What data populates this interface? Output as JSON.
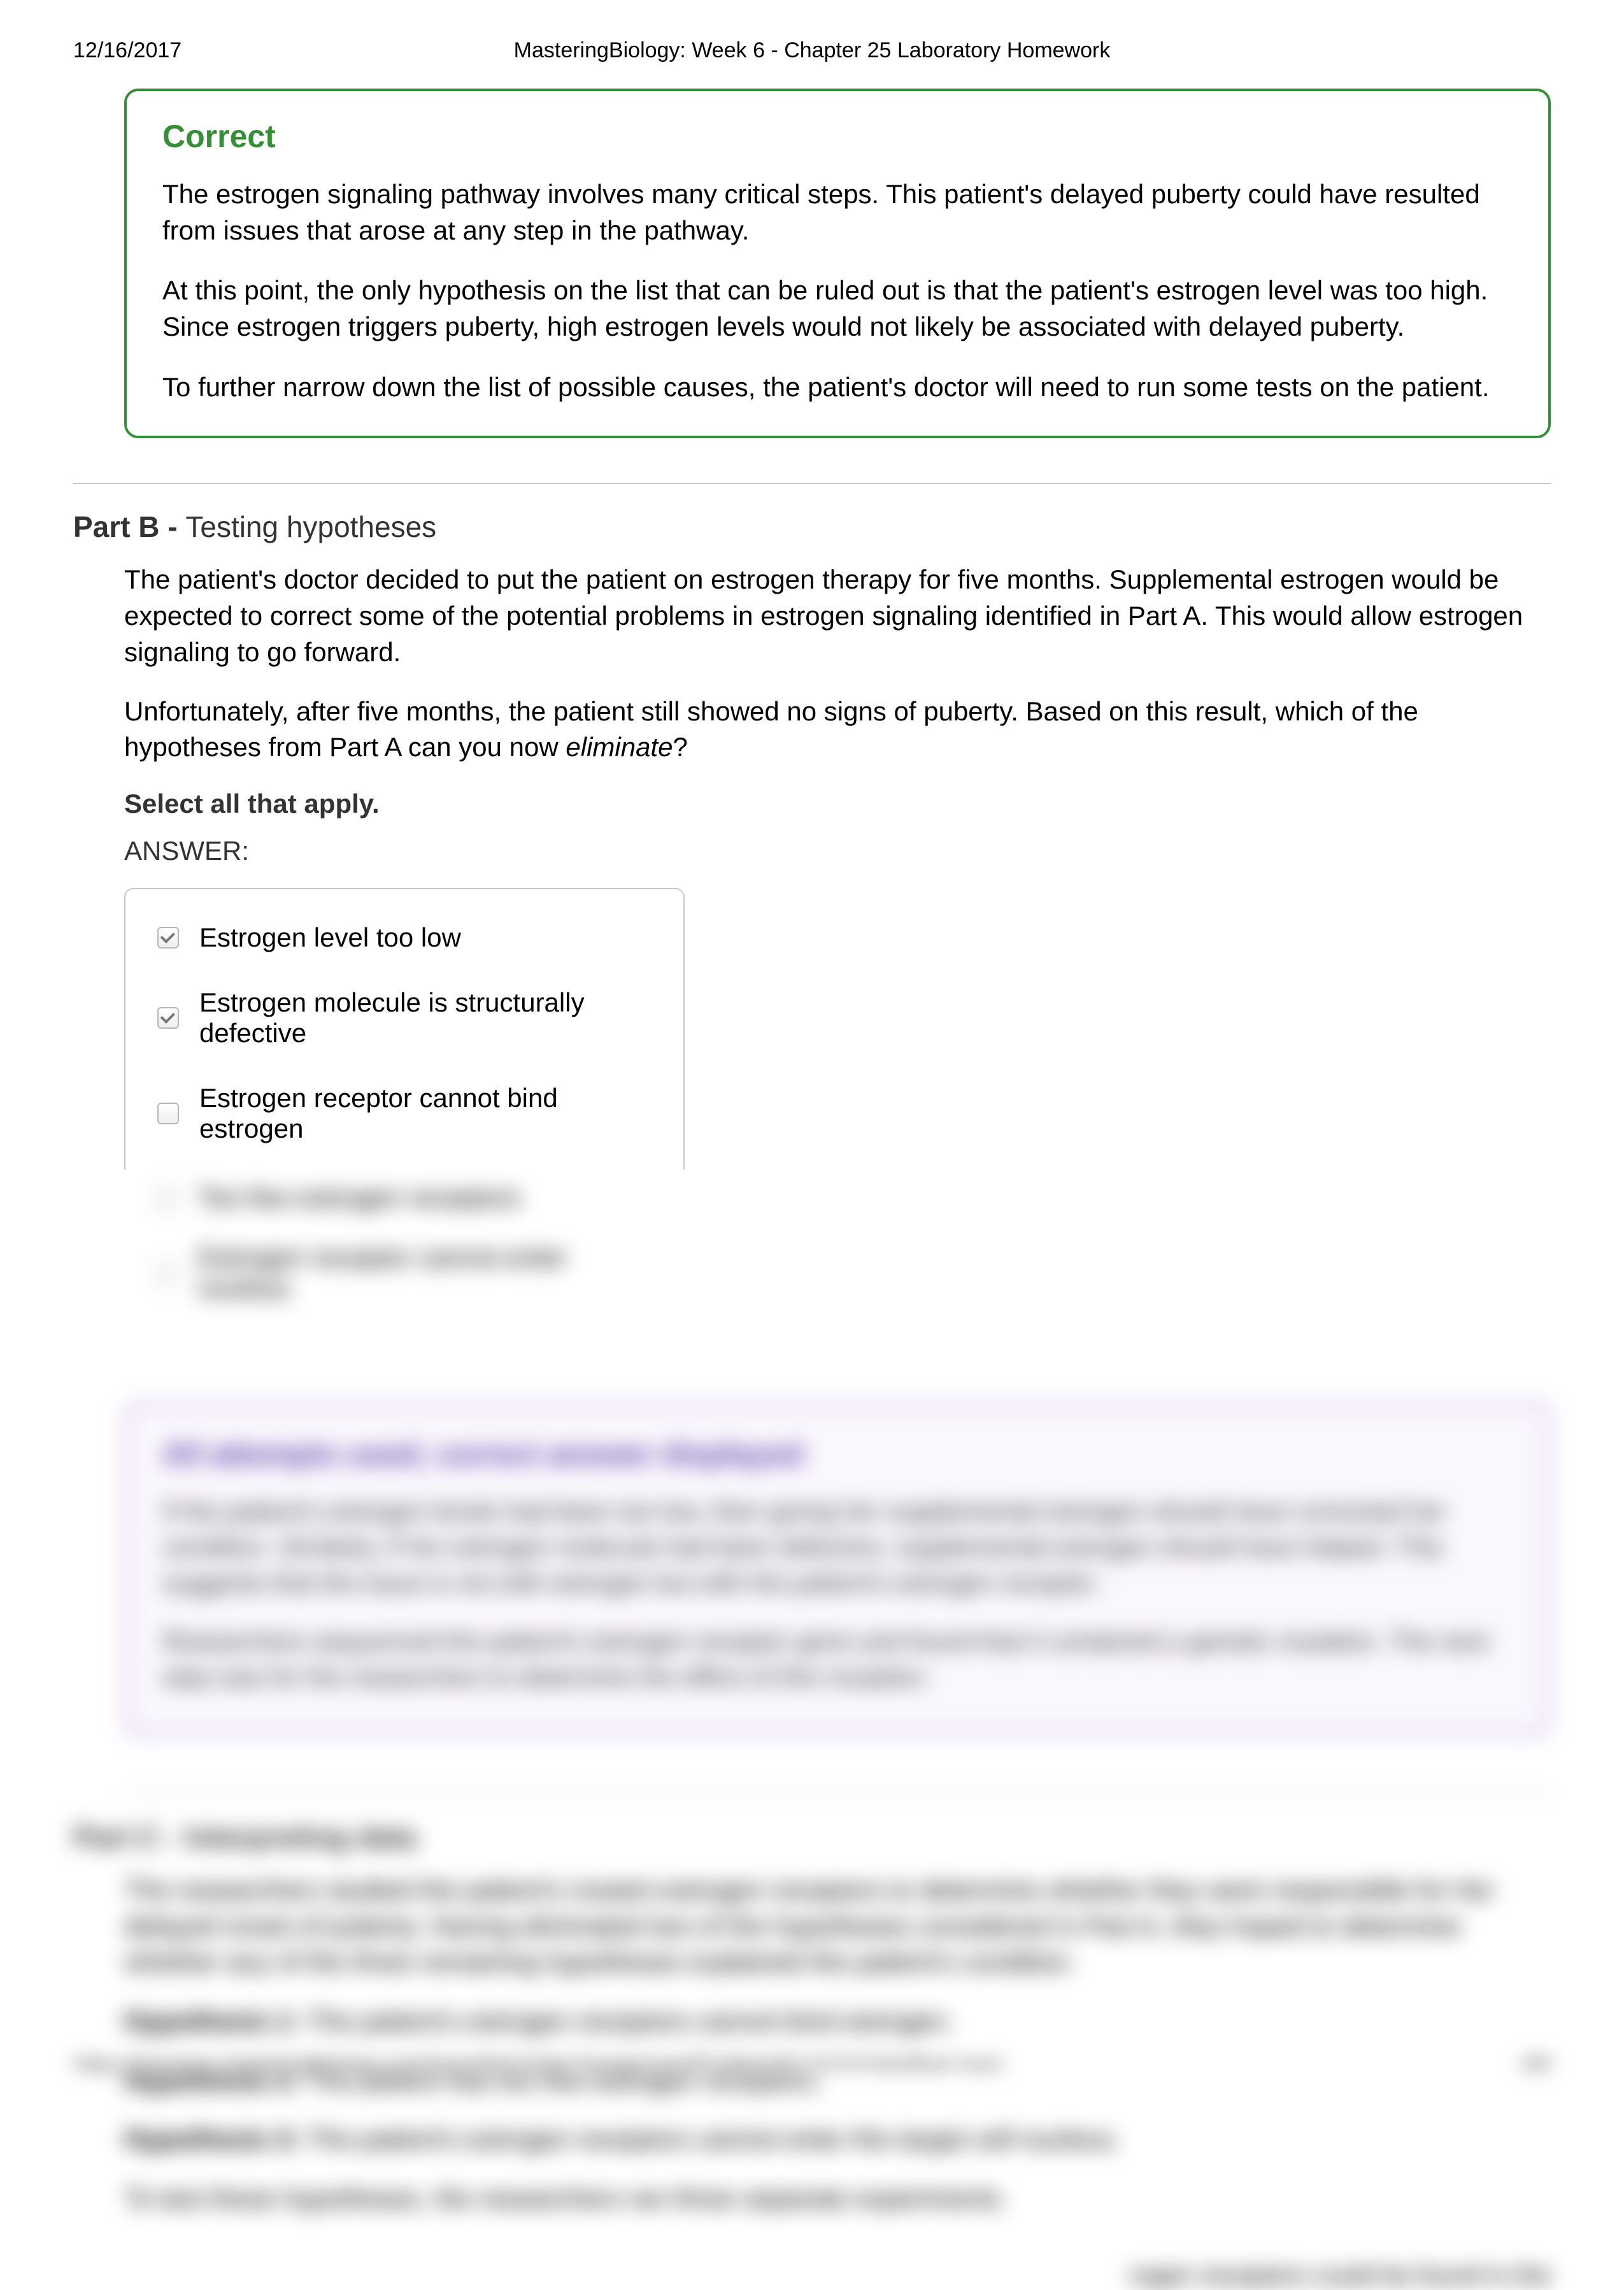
{
  "header": {
    "date": "12/16/2017",
    "title": "MasteringBiology: Week 6 - Chapter 25 Laboratory Homework"
  },
  "correct": {
    "heading": "Correct",
    "para1": "The estrogen signaling pathway involves many critical steps. This patient's delayed puberty could have resulted from issues that arose at any step in the pathway.",
    "para2": "At this point, the only hypothesis on the list that can be ruled out is that the patient's estrogen level was too high. Since estrogen triggers puberty, high estrogen levels would not likely be associated with delayed puberty.",
    "para3": "To further narrow down the list of possible causes, the patient's doctor will need to run some tests on the patient."
  },
  "partB": {
    "label": "Part B - ",
    "title": "Testing hypotheses",
    "intro1": "The patient's doctor decided to put the patient on estrogen therapy for five months. Supplemental estrogen would be expected to correct some of the potential problems in estrogen signaling identified in Part A. This would allow estrogen signaling to go forward.",
    "intro2a": "Unfortunately, after five months, the patient still showed no signs of puberty. Based on this result, which of the hypotheses from Part A can you now ",
    "intro2_em": "eliminate",
    "intro2b": "?",
    "selectAll": "Select all that apply.",
    "answerLabel": "ANSWER:",
    "options": [
      {
        "label": "Estrogen level too low",
        "checked": true
      },
      {
        "label": "Estrogen molecule is structurally defective",
        "checked": true
      },
      {
        "label": "Estrogen receptor cannot bind estrogen",
        "checked": false
      }
    ],
    "hiddenOptions": [
      {
        "label": "Too few estrogen receptors",
        "checked": false
      },
      {
        "label": "Estrogen receptor cannot enter nucleus",
        "checked": false
      }
    ]
  },
  "purple": {
    "heading": "All attempts used; correct answer displayed",
    "p1": "If the patient's estrogen levels had been too low, then giving her supplemental estrogen should have corrected her condition. Similarly, if her estrogen molecule had been defective, supplemental estrogen should have helped. This suggests that the issue is not with estrogen but with the patient's estrogen receptor.",
    "p2": "Researchers sequenced the patient's estrogen receptor gene and found that it contained a genetic mutation. The next step was for the researchers to determine the effect of this mutation."
  },
  "partC": {
    "label": "Part C - ",
    "title": "Interpreting data",
    "intro": "The researchers studied the patient's mutant estrogen receptors to determine whether they were responsible for her delayed onset of puberty. Having eliminated two of the hypotheses considered in Part A, they hoped to determine whether any of the three remaining hypotheses explained the patient's condition.",
    "h1b": "Hypothesis 1:",
    "h1": " The patient's estrogen receptors cannot bind estrogen.",
    "h2b": "Hypothesis 2:",
    "h2": " The patient has too few estrogen receptors.",
    "h3b": "Hypothesis 3:",
    "h3": " The patient's estrogen receptors cannot enter the target cell nucleus.",
    "tail": "To test these hypotheses, the researchers ran three separate experiments.",
    "frag": "rogen receptors could be found in the"
  },
  "footer": {
    "url": "https://session.masteringbiology.com/myct/itemView?assignmentProblemID=XXXXX&offset=next",
    "page": "3/8"
  },
  "style": {
    "correct_border": "#368e36",
    "purple_border": "#b293d6",
    "purple_bg": "#faf7fd",
    "purple_title": "#5c3ea8"
  }
}
